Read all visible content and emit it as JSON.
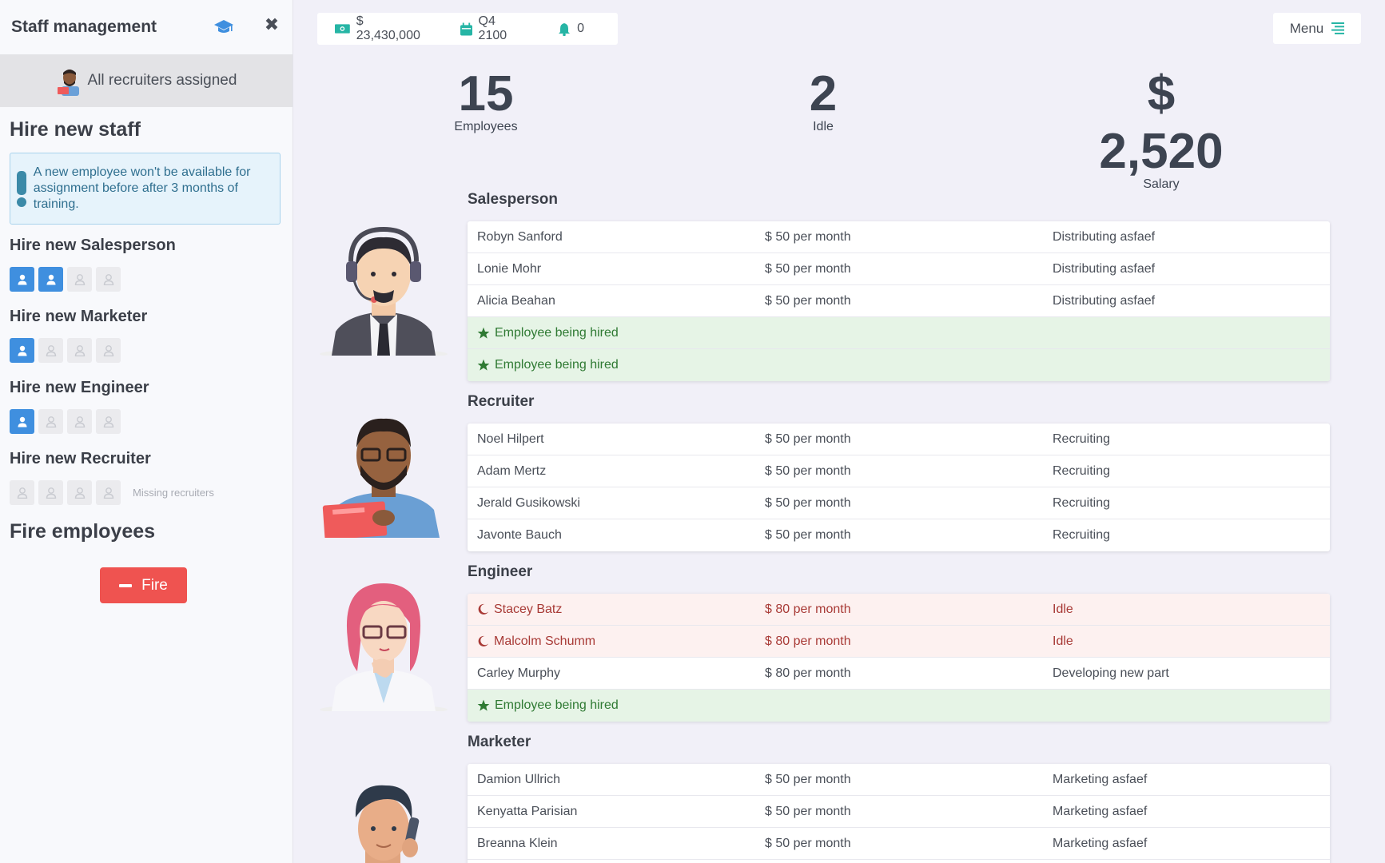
{
  "sidebar": {
    "title": "Staff management",
    "banner": "All recruiters assigned",
    "hire_title": "Hire new staff",
    "notice": "A new employee won't be available for assignment before after 3 months of training.",
    "hire": [
      {
        "label": "Hire new Salesperson",
        "filled": 2,
        "total": 4,
        "note": ""
      },
      {
        "label": "Hire new Marketer",
        "filled": 1,
        "total": 4,
        "note": ""
      },
      {
        "label": "Hire new Engineer",
        "filled": 1,
        "total": 4,
        "note": ""
      },
      {
        "label": "Hire new Recruiter",
        "filled": 0,
        "total": 4,
        "note": "Missing recruiters"
      }
    ],
    "fire_title": "Fire employees",
    "fire_label": "Fire"
  },
  "topbar": {
    "money": "$ 23,430,000",
    "date": "Q4 2100",
    "notifications": "0",
    "menu": "Menu"
  },
  "stats": {
    "employees": {
      "value": "15",
      "label": "Employees"
    },
    "idle": {
      "value": "2",
      "label": "Idle"
    },
    "salary": {
      "value": "$ 2,520",
      "label": "Salary"
    }
  },
  "colors": {
    "accent": "#3f8fdf",
    "danger": "#ef5350",
    "success": "#2f7a33",
    "idle": "#a83a36",
    "cash": "#26b5a5"
  },
  "groups": [
    {
      "title": "Salesperson",
      "rows": [
        {
          "name": "Robyn Sanford",
          "salary": "$ 50 per month",
          "task": "Distributing asfaef",
          "state": "normal"
        },
        {
          "name": "Lonie Mohr",
          "salary": "$ 50 per month",
          "task": "Distributing asfaef",
          "state": "normal"
        },
        {
          "name": "Alicia Beahan",
          "salary": "$ 50 per month",
          "task": "Distributing asfaef",
          "state": "normal"
        },
        {
          "name": "Employee being hired",
          "salary": "",
          "task": "",
          "state": "hiring"
        },
        {
          "name": "Employee being hired",
          "salary": "",
          "task": "",
          "state": "hiring"
        }
      ]
    },
    {
      "title": "Recruiter",
      "rows": [
        {
          "name": "Noel Hilpert",
          "salary": "$ 50 per month",
          "task": "Recruiting",
          "state": "normal"
        },
        {
          "name": "Adam Mertz",
          "salary": "$ 50 per month",
          "task": "Recruiting",
          "state": "normal"
        },
        {
          "name": "Jerald Gusikowski",
          "salary": "$ 50 per month",
          "task": "Recruiting",
          "state": "normal"
        },
        {
          "name": "Javonte Bauch",
          "salary": "$ 50 per month",
          "task": "Recruiting",
          "state": "normal"
        }
      ]
    },
    {
      "title": "Engineer",
      "rows": [
        {
          "name": "Stacey Batz",
          "salary": "$ 80 per month",
          "task": "Idle",
          "state": "idle"
        },
        {
          "name": "Malcolm Schumm",
          "salary": "$ 80 per month",
          "task": "Idle",
          "state": "idle"
        },
        {
          "name": "Carley Murphy",
          "salary": "$ 80 per month",
          "task": "Developing new part",
          "state": "normal"
        },
        {
          "name": "Employee being hired",
          "salary": "",
          "task": "",
          "state": "hiring"
        }
      ]
    },
    {
      "title": "Marketer",
      "rows": [
        {
          "name": "Damion Ullrich",
          "salary": "$ 50 per month",
          "task": "Marketing asfaef",
          "state": "normal"
        },
        {
          "name": "Kenyatta Parisian",
          "salary": "$ 50 per month",
          "task": "Marketing asfaef",
          "state": "normal"
        },
        {
          "name": "Breanna Klein",
          "salary": "$ 50 per month",
          "task": "Marketing asfaef",
          "state": "normal"
        },
        {
          "name": "",
          "salary": "",
          "task": "",
          "state": "normal"
        }
      ]
    }
  ]
}
